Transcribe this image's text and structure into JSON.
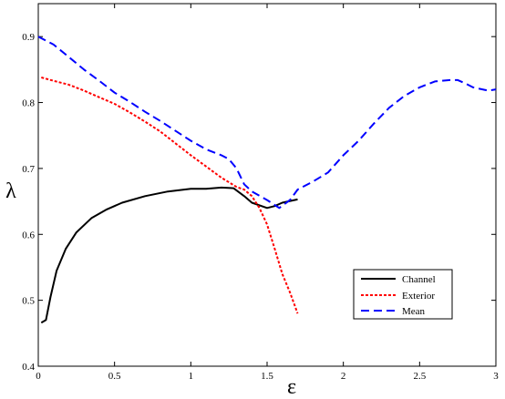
{
  "chart_data": {
    "type": "line",
    "title": "",
    "xlabel": "ε",
    "ylabel": "λ",
    "xlim": [
      0,
      3
    ],
    "ylim": [
      0.4,
      0.95
    ],
    "xticks": [
      0,
      0.5,
      1,
      1.5,
      2,
      2.5,
      3
    ],
    "xtick_labels": [
      "0",
      "0.5",
      "1",
      "1.5",
      "2",
      "2.5",
      "3"
    ],
    "yticks": [
      0.4,
      0.5,
      0.6,
      0.7,
      0.8,
      0.9
    ],
    "ytick_labels": [
      "0.4",
      "0.5",
      "0.6",
      "0.7",
      "0.8",
      "0.9"
    ],
    "grid": false,
    "legend_position": "lower-right",
    "series": [
      {
        "name": "Channel",
        "color": "#000000",
        "style": "solid",
        "points": [
          [
            0.02,
            0.466
          ],
          [
            0.05,
            0.47
          ],
          [
            0.08,
            0.505
          ],
          [
            0.12,
            0.545
          ],
          [
            0.18,
            0.578
          ],
          [
            0.25,
            0.603
          ],
          [
            0.35,
            0.625
          ],
          [
            0.45,
            0.638
          ],
          [
            0.55,
            0.648
          ],
          [
            0.7,
            0.658
          ],
          [
            0.85,
            0.665
          ],
          [
            1.0,
            0.669
          ],
          [
            1.1,
            0.669
          ],
          [
            1.2,
            0.671
          ],
          [
            1.28,
            0.67
          ],
          [
            1.35,
            0.658
          ],
          [
            1.4,
            0.648
          ],
          [
            1.5,
            0.64
          ],
          [
            1.55,
            0.643
          ],
          [
            1.6,
            0.648
          ],
          [
            1.7,
            0.653
          ]
        ]
      },
      {
        "name": "Exterior",
        "color": "#ff0000",
        "style": "dotted",
        "points": [
          [
            0.02,
            0.838
          ],
          [
            0.1,
            0.833
          ],
          [
            0.2,
            0.827
          ],
          [
            0.3,
            0.818
          ],
          [
            0.4,
            0.808
          ],
          [
            0.5,
            0.798
          ],
          [
            0.6,
            0.785
          ],
          [
            0.7,
            0.771
          ],
          [
            0.8,
            0.756
          ],
          [
            0.9,
            0.738
          ],
          [
            1.0,
            0.72
          ],
          [
            1.1,
            0.703
          ],
          [
            1.2,
            0.686
          ],
          [
            1.3,
            0.672
          ],
          [
            1.35,
            0.668
          ],
          [
            1.4,
            0.658
          ],
          [
            1.45,
            0.64
          ],
          [
            1.5,
            0.615
          ],
          [
            1.55,
            0.578
          ],
          [
            1.6,
            0.54
          ],
          [
            1.65,
            0.512
          ],
          [
            1.7,
            0.48
          ]
        ]
      },
      {
        "name": "Mean",
        "color": "#0000ff",
        "style": "dashed",
        "points": [
          [
            0.0,
            0.9
          ],
          [
            0.1,
            0.888
          ],
          [
            0.2,
            0.869
          ],
          [
            0.3,
            0.85
          ],
          [
            0.4,
            0.833
          ],
          [
            0.5,
            0.815
          ],
          [
            0.6,
            0.801
          ],
          [
            0.7,
            0.786
          ],
          [
            0.8,
            0.772
          ],
          [
            0.9,
            0.757
          ],
          [
            1.0,
            0.742
          ],
          [
            1.1,
            0.729
          ],
          [
            1.2,
            0.72
          ],
          [
            1.25,
            0.714
          ],
          [
            1.3,
            0.7
          ],
          [
            1.35,
            0.676
          ],
          [
            1.4,
            0.665
          ],
          [
            1.5,
            0.652
          ],
          [
            1.58,
            0.64
          ],
          [
            1.65,
            0.652
          ],
          [
            1.7,
            0.668
          ],
          [
            1.8,
            0.68
          ],
          [
            1.9,
            0.694
          ],
          [
            2.0,
            0.72
          ],
          [
            2.1,
            0.742
          ],
          [
            2.2,
            0.768
          ],
          [
            2.3,
            0.792
          ],
          [
            2.4,
            0.81
          ],
          [
            2.5,
            0.823
          ],
          [
            2.6,
            0.832
          ],
          [
            2.7,
            0.834
          ],
          [
            2.75,
            0.834
          ],
          [
            2.8,
            0.829
          ],
          [
            2.85,
            0.823
          ],
          [
            2.95,
            0.818
          ],
          [
            3.0,
            0.82
          ]
        ]
      }
    ]
  }
}
